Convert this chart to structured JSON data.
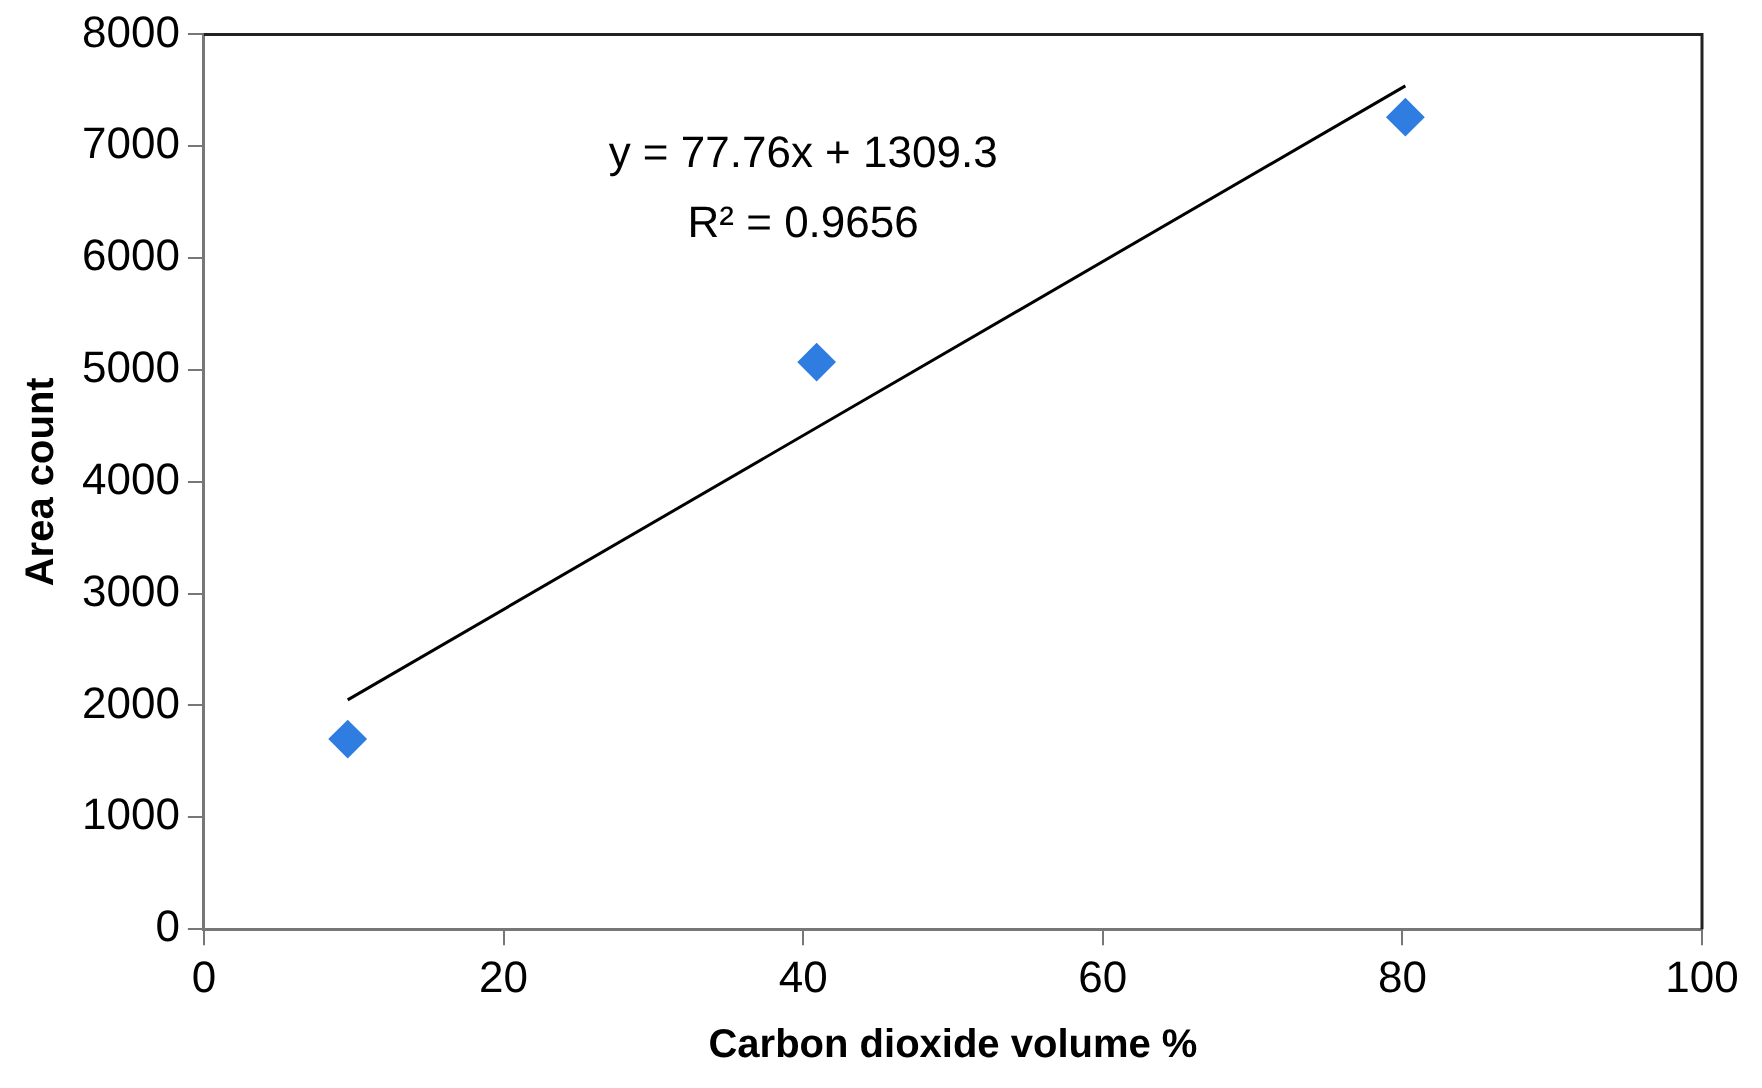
{
  "chart_data": {
    "type": "scatter",
    "xlabel": "Carbon dioxide volume %",
    "ylabel": "Area count",
    "x": [
      9.6,
      40.9,
      80.2
    ],
    "xlim": [
      0,
      100
    ],
    "xticks": [
      0,
      20,
      40,
      60,
      80,
      100
    ],
    "ylim": [
      0,
      8000
    ],
    "yticks": [
      0,
      1000,
      2000,
      3000,
      4000,
      5000,
      6000,
      7000,
      8000
    ],
    "series": [
      {
        "color": "#2f7de0",
        "marker": "diamond",
        "values": [
          1700,
          5070,
          7260
        ]
      },
      {
        "type": "line",
        "color": "#000000",
        "marker": "none",
        "x": [
          9.6,
          80.2
        ],
        "values": [
          2050,
          7540
        ]
      }
    ],
    "annotations": [
      "y = 77.76x + 1309.3",
      "R² = 0.9656"
    ],
    "grid": false,
    "legend": false
  }
}
